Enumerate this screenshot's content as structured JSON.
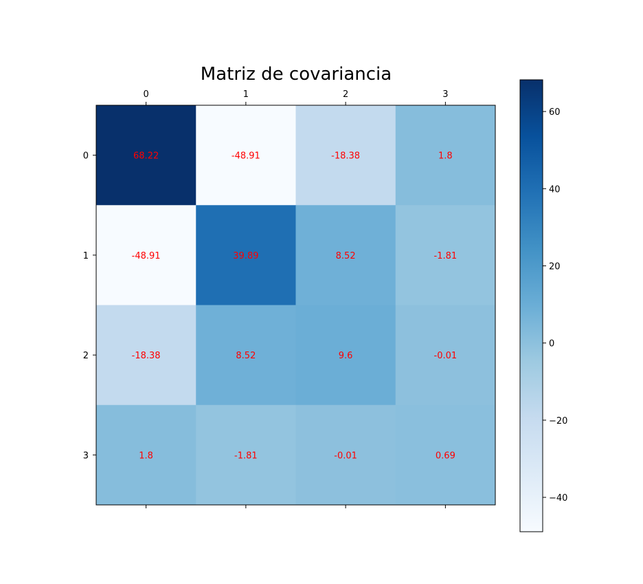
{
  "chart_data": {
    "type": "heatmap",
    "title": "Matriz de covariancia",
    "row_labels": [
      "0",
      "1",
      "2",
      "3"
    ],
    "col_labels": [
      "0",
      "1",
      "2",
      "3"
    ],
    "values": [
      [
        68.22,
        -48.91,
        -18.38,
        1.8
      ],
      [
        -48.91,
        39.89,
        8.52,
        -1.81
      ],
      [
        -18.38,
        8.52,
        9.6,
        -0.01
      ],
      [
        1.8,
        -1.81,
        -0.01,
        0.69
      ]
    ],
    "cell_labels": [
      [
        "68.22",
        "-48.91",
        "-18.38",
        "1.8"
      ],
      [
        "-48.91",
        "39.89",
        "8.52",
        "-1.81"
      ],
      [
        "-18.38",
        "8.52",
        "9.6",
        "-0.01"
      ],
      [
        "1.8",
        "-1.81",
        "-0.01",
        "0.69"
      ]
    ],
    "colormap": "Blues",
    "annotation_color": "#ff0000",
    "colorbar": {
      "range": [
        -48.91,
        68.22
      ],
      "ticks": [
        -40,
        -20,
        0,
        20,
        40,
        60
      ],
      "tick_labels": [
        "−40",
        "−20",
        "0",
        "20",
        "40",
        "60"
      ]
    }
  }
}
